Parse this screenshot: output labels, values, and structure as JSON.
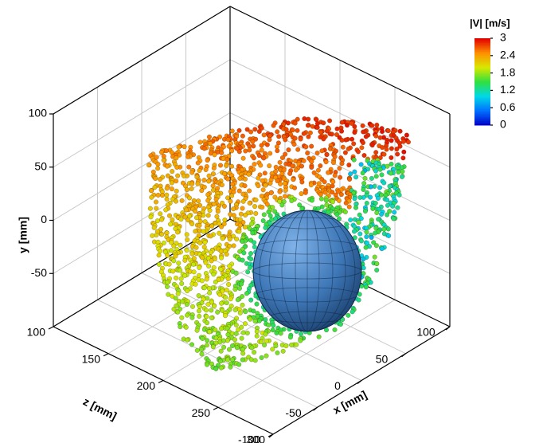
{
  "chart_data": {
    "type": "scatter3d",
    "xlabel": "x [mm]",
    "ylabel": "y [mm]",
    "zlabel": "z [mm]",
    "xlim": [
      -100,
      100
    ],
    "xticks": [
      -100,
      -50,
      0,
      50,
      100
    ],
    "ylim": [
      -100,
      100
    ],
    "yticks": [
      -50,
      0,
      50,
      100
    ],
    "zlim": [
      100,
      300
    ],
    "zticks": [
      100,
      150,
      200,
      250,
      300
    ],
    "grid": true,
    "colorbar": {
      "title": "|V| [m/s]",
      "lim": [
        0,
        3
      ],
      "ticks": [
        0,
        0.6,
        1.2,
        1.8,
        2.4,
        3
      ],
      "colors": [
        "#0000c8",
        "#0070ff",
        "#00d8e8",
        "#30e040",
        "#d8e800",
        "#ff9000",
        "#e00000"
      ]
    }
  }
}
